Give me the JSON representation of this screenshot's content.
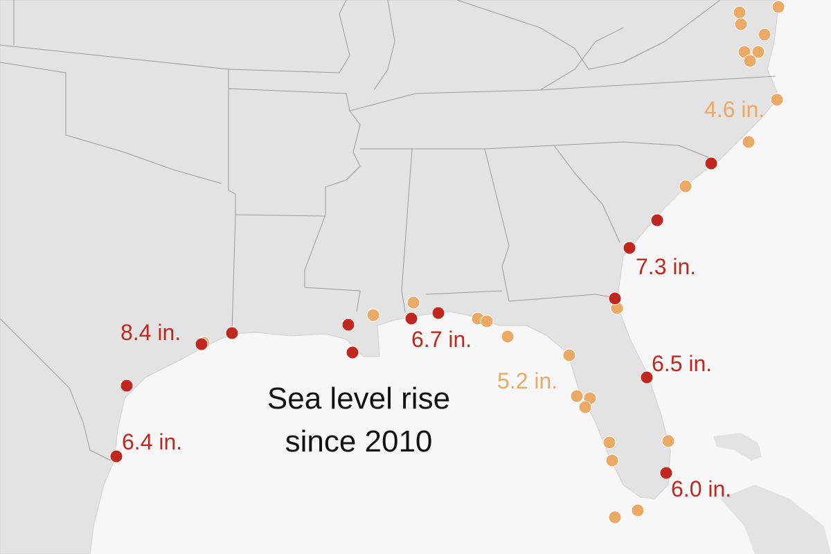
{
  "title": [
    "Sea level rise",
    "since 2010"
  ],
  "labels": [
    {
      "text": "8.4 in.",
      "color": "#c0281f"
    },
    {
      "text": "6.4 in.",
      "color": "#c0281f"
    },
    {
      "text": "6.7 in.",
      "color": "#c0281f"
    },
    {
      "text": "5.2 in.",
      "color": "#eaa965"
    },
    {
      "text": "7.3 in.",
      "color": "#c0281f"
    },
    {
      "text": "6.5 in.",
      "color": "#c0281f"
    },
    {
      "text": "6.0 in.",
      "color": "#c0281f"
    },
    {
      "text": "4.6 in.",
      "color": "#eaa965"
    }
  ]
}
